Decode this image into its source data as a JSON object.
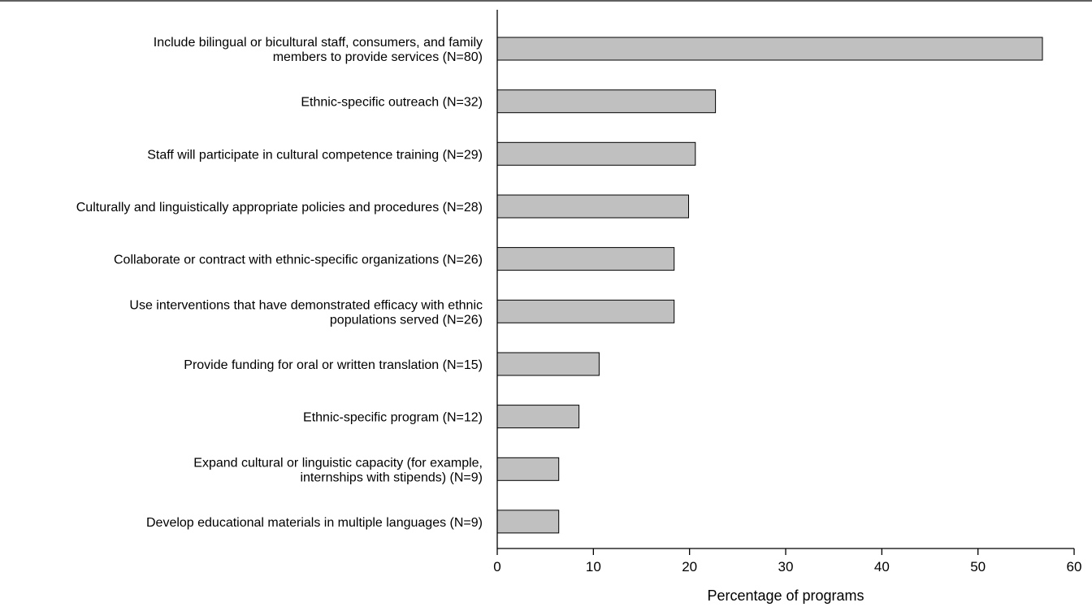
{
  "chart_data": {
    "type": "bar",
    "orientation": "horizontal",
    "title": "",
    "xlabel": "Percentage of programs",
    "ylabel": "",
    "xlim": [
      0,
      60
    ],
    "xticks": [
      0,
      10,
      20,
      30,
      40,
      50,
      60
    ],
    "grid": false,
    "bar_color": "#c0c0c0",
    "categories": [
      [
        "Include bilingual or bicultural staff, consumers, and family",
        "members to provide services (N=80)"
      ],
      [
        "Ethnic-specific outreach (N=32)"
      ],
      [
        "Staff will participate in cultural competence training (N=29)"
      ],
      [
        "Culturally and linguistically appropriate policies and procedures (N=28)"
      ],
      [
        "Collaborate or contract with ethnic-specific organizations (N=26)"
      ],
      [
        "Use interventions that have demonstrated efficacy with ethnic",
        "populations served (N=26)"
      ],
      [
        "Provide funding for oral or written translation (N=15)"
      ],
      [
        "Ethnic-specific program (N=12)"
      ],
      [
        "Expand cultural or linguistic capacity (for example,",
        "internships with stipends) (N=9)"
      ],
      [
        "Develop educational materials in multiple languages (N=9)"
      ]
    ],
    "values": [
      56.7,
      22.7,
      20.6,
      19.9,
      18.4,
      18.4,
      10.6,
      8.5,
      6.4,
      6.4
    ]
  }
}
